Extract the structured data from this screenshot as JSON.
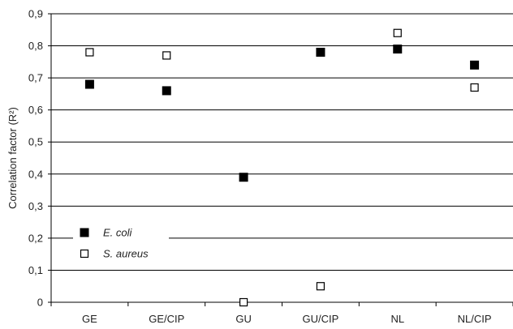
{
  "chart_data": {
    "type": "scatter",
    "title": "",
    "xlabel": "",
    "ylabel": "Correlation factor (R²)",
    "categories": [
      "GE",
      "GE/CIP",
      "GU",
      "GU/CIP",
      "NL",
      "NL/CIP"
    ],
    "ylim": [
      0,
      0.9
    ],
    "yticks": [
      0,
      0.1,
      0.2,
      0.3,
      0.4,
      0.5,
      0.6,
      0.7,
      0.8,
      0.9
    ],
    "ytick_labels": [
      "0",
      "0,1",
      "0,2",
      "0,3",
      "0,4",
      "0,5",
      "0,6",
      "0,7",
      "0,8",
      "0,9"
    ],
    "grid": "horizontal",
    "legend_position": "bottom-left",
    "series": [
      {
        "name": "E. coli",
        "marker": "filled-square",
        "color": "#000000",
        "values": [
          0.68,
          0.66,
          0.39,
          0.78,
          0.79,
          0.74
        ]
      },
      {
        "name": "S. aureus",
        "marker": "open-square",
        "color": "#000000",
        "values": [
          0.78,
          0.77,
          0.0,
          0.05,
          0.84,
          0.67
        ]
      }
    ]
  }
}
